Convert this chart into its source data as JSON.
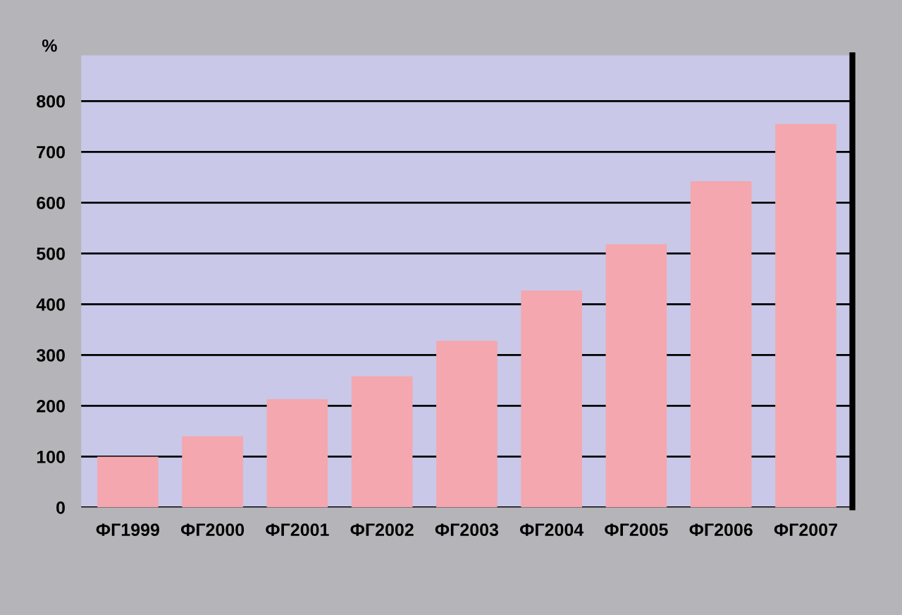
{
  "chart_data": {
    "type": "bar",
    "ylabel": "%",
    "categories": [
      "ФГ1999",
      "ФГ2000",
      "ФГ2001",
      "ФГ2002",
      "ФГ2003",
      "ФГ2004",
      "ФГ2005",
      "ФГ2006",
      "ФГ2007"
    ],
    "values": [
      100,
      140,
      213,
      258,
      328,
      427,
      518,
      642,
      755
    ],
    "color": "#f4a7ae",
    "ylim": [
      0,
      890
    ],
    "yticks": [
      0,
      100,
      200,
      300,
      400,
      500,
      600,
      700,
      800
    ],
    "grid": "y"
  }
}
